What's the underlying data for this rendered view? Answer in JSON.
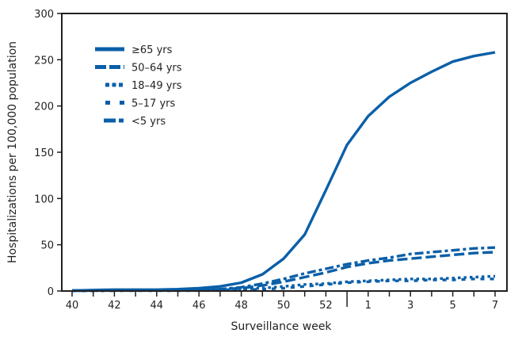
{
  "chart_data": {
    "type": "line",
    "xlabel": "Surveillance week",
    "ylabel": "Hospitalizations per 100,000 population",
    "ylim": [
      0,
      300
    ],
    "yticks": [
      0,
      50,
      100,
      150,
      200,
      250,
      300
    ],
    "x": [
      "40",
      "41",
      "42",
      "43",
      "44",
      "45",
      "46",
      "47",
      "48",
      "49",
      "50",
      "51",
      "52",
      "53",
      "1",
      "2",
      "3",
      "4",
      "5",
      "6",
      "7"
    ],
    "xtick_labels": [
      "40",
      "",
      "42",
      "",
      "44",
      "",
      "46",
      "",
      "48",
      "",
      "50",
      "",
      "52",
      "",
      "1",
      "",
      "3",
      "",
      "5",
      "",
      "7"
    ],
    "legend_position": "top-left",
    "color": "#0a5fa8",
    "series": [
      {
        "name": "≥65 yrs",
        "style": "solid",
        "values": [
          0.5,
          1,
          1.5,
          1.5,
          1.5,
          2,
          3,
          5,
          9,
          18,
          35,
          61,
          109,
          158,
          189,
          210,
          225,
          237,
          248,
          254,
          258
        ]
      },
      {
        "name": "50–64 yrs",
        "style": "long-dash",
        "values": [
          0.5,
          0.5,
          1,
          1,
          1,
          1,
          1.5,
          2,
          3,
          6,
          10,
          15,
          20,
          26,
          30,
          33,
          35,
          37,
          39,
          41,
          42
        ]
      },
      {
        "name": "18–49 yrs",
        "style": "dotted",
        "values": [
          0.3,
          0.3,
          0.5,
          0.5,
          0.5,
          0.5,
          1,
          1,
          2,
          3,
          5,
          7,
          8,
          10,
          11,
          12,
          13,
          13,
          14,
          15,
          16
        ]
      },
      {
        "name": "5–17 yrs",
        "style": "short-dash",
        "values": [
          0.2,
          0.2,
          0.3,
          0.3,
          0.3,
          0.3,
          0.5,
          0.5,
          1,
          2,
          3,
          5,
          7,
          9,
          10,
          11,
          11,
          12,
          12,
          13,
          13
        ]
      },
      {
        "name": "<5 yrs",
        "style": "dash-dot",
        "values": [
          0.5,
          0.5,
          1,
          1,
          1,
          1,
          1.5,
          2,
          4,
          8,
          13,
          19,
          24,
          29,
          33,
          36,
          40,
          42,
          44,
          46,
          47
        ]
      }
    ]
  }
}
